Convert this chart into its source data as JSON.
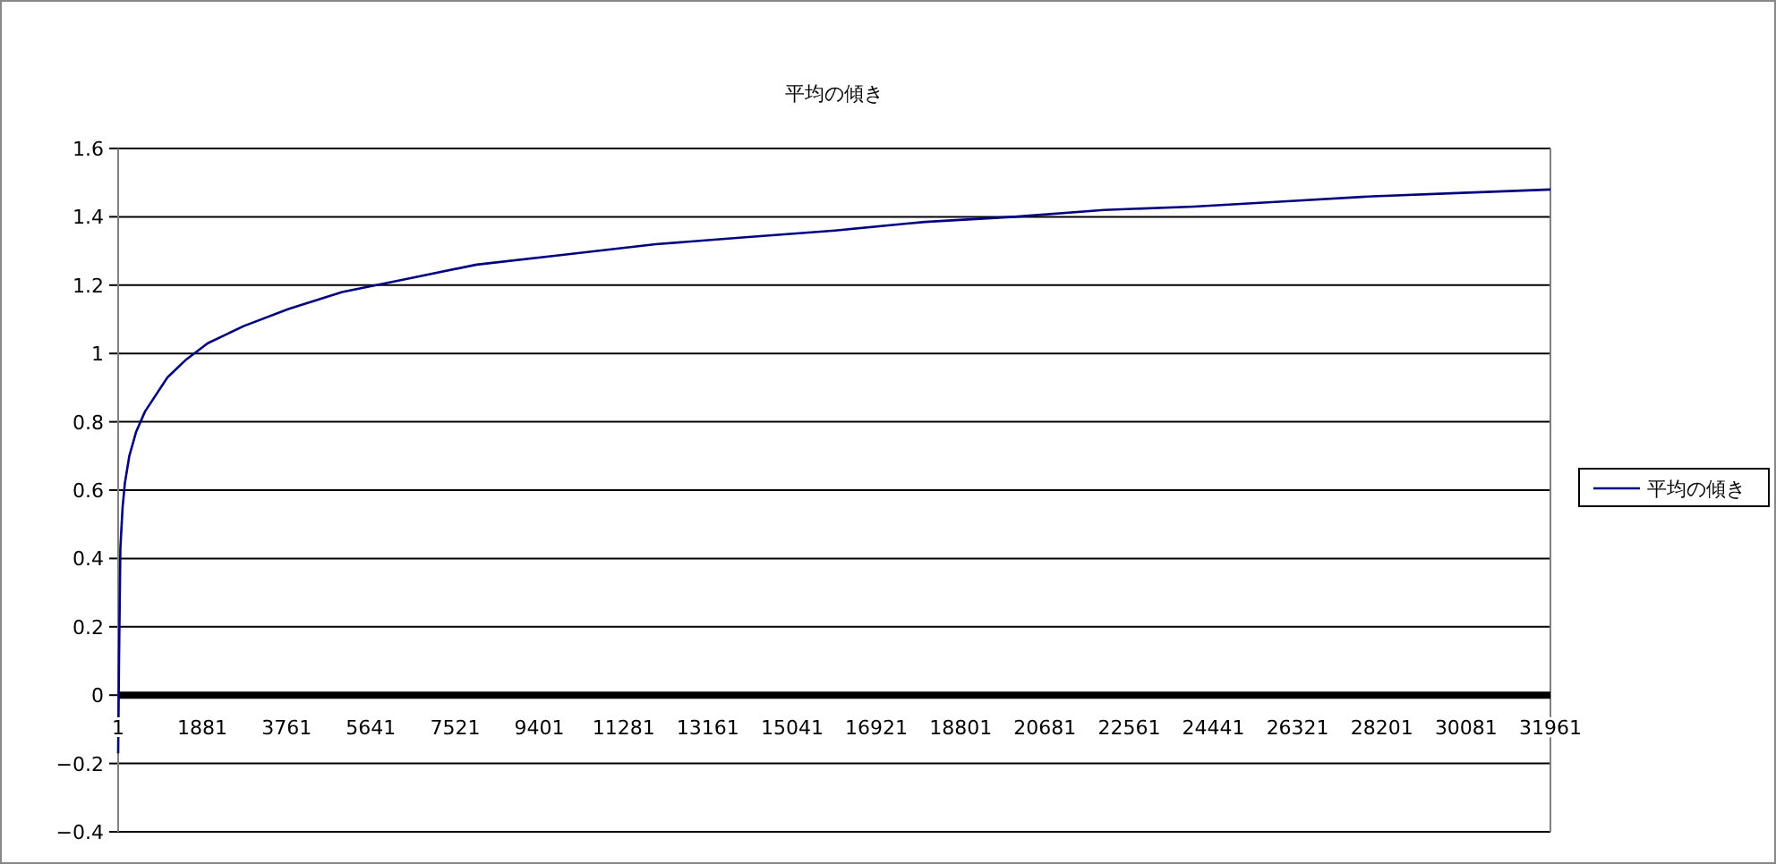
{
  "chart_data": {
    "type": "line",
    "title": "平均の傾き",
    "x": [
      1,
      20,
      50,
      100,
      150,
      250,
      400,
      600,
      800,
      1100,
      1500,
      2000,
      2800,
      3800,
      5000,
      6500,
      8000,
      10000,
      12000,
      14000,
      16000,
      18000,
      20000,
      22000,
      24000,
      26000,
      28000,
      30000,
      31961
    ],
    "series": [
      {
        "name": "平均の傾き",
        "color": "#000080",
        "values": [
          -0.17,
          0.1,
          0.43,
          0.55,
          0.62,
          0.7,
          0.77,
          0.83,
          0.87,
          0.93,
          0.98,
          1.03,
          1.08,
          1.13,
          1.18,
          1.22,
          1.26,
          1.29,
          1.32,
          1.34,
          1.36,
          1.385,
          1.4,
          1.42,
          1.43,
          1.445,
          1.46,
          1.47,
          1.48
        ]
      }
    ],
    "xlim": [
      1,
      31961
    ],
    "xticks": [
      1,
      1881,
      3761,
      5641,
      7521,
      9401,
      11281,
      13161,
      15041,
      16921,
      18801,
      20681,
      22561,
      24441,
      26321,
      28201,
      30081,
      31961
    ],
    "ylim": [
      -0.4,
      1.6
    ],
    "yticks": [
      -0.4,
      -0.2,
      0,
      0.2,
      0.4,
      0.6,
      0.8,
      1,
      1.2,
      1.4,
      1.6
    ],
    "grid": "y",
    "legend": "right",
    "line_style": "solid"
  }
}
